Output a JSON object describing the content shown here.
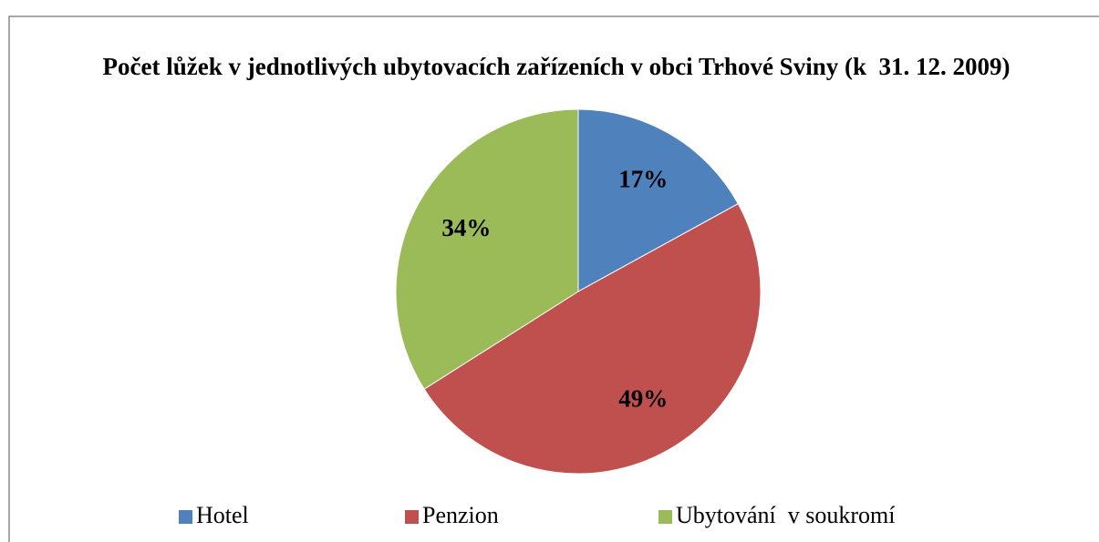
{
  "chart_data": {
    "type": "pie",
    "title": "Počet lůžek v jednotlivých ubytovacích zařízeních v obci Trhové Sviny (k  31. 12. 2009)",
    "categories": [
      "Hotel",
      "Penzion",
      "Ubytování  v soukromí"
    ],
    "values": [
      17,
      49,
      34
    ],
    "value_labels": [
      "17%",
      "49%",
      "34%"
    ],
    "colors": [
      "#4f81bd",
      "#c0504d",
      "#9bbb59"
    ],
    "legend": "bottom"
  }
}
